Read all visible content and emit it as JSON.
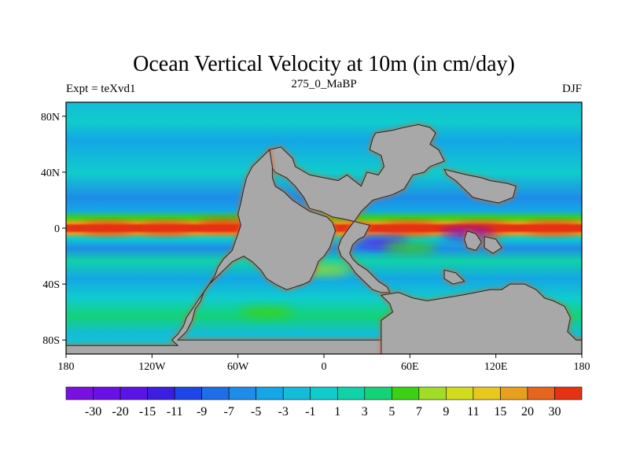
{
  "chart_data": {
    "type": "heatmap",
    "title": "Ocean Vertical Velocity at 10m (in cm/day)",
    "left_label": "Expt = teXvd1",
    "center_label": "275_0_MaBP",
    "right_label": "DJF",
    "x_range": [
      -180,
      180
    ],
    "y_range": [
      -90,
      90
    ],
    "x_ticks": [
      {
        "value": -180,
        "label": "180"
      },
      {
        "value": -120,
        "label": "120W"
      },
      {
        "value": -60,
        "label": "60W"
      },
      {
        "value": 0,
        "label": "0"
      },
      {
        "value": 60,
        "label": "60E"
      },
      {
        "value": 120,
        "label": "120E"
      },
      {
        "value": 180,
        "label": "180"
      }
    ],
    "y_ticks": [
      {
        "value": 80,
        "label": "80N"
      },
      {
        "value": 40,
        "label": "40N"
      },
      {
        "value": 0,
        "label": "0"
      },
      {
        "value": -40,
        "label": "40S"
      },
      {
        "value": -80,
        "label": "80S"
      }
    ],
    "colorbar": {
      "levels": [
        "-30",
        "-20",
        "-15",
        "-11",
        "-9",
        "-7",
        "-5",
        "-3",
        "-1",
        "1",
        "3",
        "5",
        "7",
        "9",
        "11",
        "15",
        "20",
        "30"
      ],
      "colors": [
        "#7a10e0",
        "#6a10e6",
        "#5a14e8",
        "#3b1ee0",
        "#1e46e6",
        "#1e6ee8",
        "#1e8ce8",
        "#14a6e6",
        "#14bcd8",
        "#10cccc",
        "#10d2a8",
        "#14d278",
        "#3cd214",
        "#a0dc28",
        "#d2dc1e",
        "#e6c81e",
        "#e6a01e",
        "#e6641e",
        "#e63214"
      ]
    },
    "land_color": "#a8a8a8",
    "land_polygons": [
      {
        "name": "pangea-main",
        "lonlat": [
          [
            -38,
            56
          ],
          [
            -30,
            58
          ],
          [
            -22,
            50
          ],
          [
            -20,
            44
          ],
          [
            -10,
            38
          ],
          [
            0,
            36
          ],
          [
            10,
            34
          ],
          [
            16,
            38
          ],
          [
            26,
            30
          ],
          [
            30,
            40
          ],
          [
            38,
            38
          ],
          [
            42,
            44
          ],
          [
            40,
            52
          ],
          [
            32,
            56
          ],
          [
            34,
            64
          ],
          [
            36,
            68
          ],
          [
            48,
            70
          ],
          [
            56,
            72
          ],
          [
            66,
            74
          ],
          [
            74,
            72
          ],
          [
            78,
            68
          ],
          [
            74,
            60
          ],
          [
            80,
            56
          ],
          [
            84,
            48
          ],
          [
            74,
            44
          ],
          [
            70,
            40
          ],
          [
            62,
            38
          ],
          [
            56,
            28
          ],
          [
            48,
            24
          ],
          [
            34,
            20
          ],
          [
            30,
            16
          ],
          [
            26,
            12
          ],
          [
            22,
            6
          ],
          [
            16,
            -2
          ],
          [
            12,
            -8
          ],
          [
            10,
            -14
          ],
          [
            12,
            -20
          ],
          [
            18,
            -26
          ],
          [
            22,
            -32
          ],
          [
            30,
            -40
          ],
          [
            34,
            -44
          ],
          [
            40,
            -46
          ],
          [
            46,
            -46
          ],
          [
            44,
            -42
          ],
          [
            38,
            -38
          ],
          [
            34,
            -34
          ],
          [
            30,
            -30
          ],
          [
            24,
            -26
          ],
          [
            20,
            -22
          ],
          [
            18,
            -18
          ],
          [
            20,
            -12
          ],
          [
            24,
            -8
          ],
          [
            28,
            -6
          ],
          [
            30,
            -2
          ],
          [
            32,
            2
          ],
          [
            16,
            6
          ],
          [
            6,
            8
          ],
          [
            -2,
            12
          ],
          [
            -10,
            14
          ],
          [
            -14,
            22
          ],
          [
            -20,
            30
          ],
          [
            -26,
            36
          ],
          [
            -34,
            40
          ],
          [
            -38,
            46
          ]
        ]
      },
      {
        "name": "south-america-africa",
        "lonlat": [
          [
            -38,
            56
          ],
          [
            -44,
            50
          ],
          [
            -50,
            44
          ],
          [
            -54,
            36
          ],
          [
            -56,
            28
          ],
          [
            -58,
            18
          ],
          [
            -60,
            10
          ],
          [
            -58,
            2
          ],
          [
            -60,
            -4
          ],
          [
            -62,
            -10
          ],
          [
            -64,
            -16
          ],
          [
            -70,
            -22
          ],
          [
            -74,
            -28
          ],
          [
            -76,
            -34
          ],
          [
            -80,
            -40
          ],
          [
            -84,
            -46
          ],
          [
            -86,
            -52
          ],
          [
            -90,
            -58
          ],
          [
            -92,
            -66
          ],
          [
            -96,
            -74
          ],
          [
            -102,
            -80
          ],
          [
            -60,
            -80
          ],
          [
            -20,
            -80
          ],
          [
            20,
            -80
          ],
          [
            60,
            -80
          ],
          [
            90,
            -80
          ],
          [
            120,
            -80
          ],
          [
            160,
            -80
          ],
          [
            180,
            -80
          ],
          [
            180,
            -90
          ],
          [
            -180,
            -90
          ],
          [
            -180,
            -84
          ],
          [
            -102,
            -84
          ],
          [
            -106,
            -80
          ],
          [
            -102,
            -76
          ],
          [
            -98,
            -70
          ],
          [
            -96,
            -64
          ],
          [
            -92,
            -58
          ],
          [
            -88,
            -52
          ],
          [
            -84,
            -46
          ],
          [
            -80,
            -40
          ],
          [
            -74,
            -34
          ],
          [
            -68,
            -28
          ],
          [
            -64,
            -24
          ],
          [
            -60,
            -22
          ],
          [
            -56,
            -20
          ],
          [
            -50,
            -24
          ],
          [
            -44,
            -30
          ],
          [
            -40,
            -36
          ],
          [
            -34,
            -40
          ],
          [
            -30,
            -42
          ],
          [
            -26,
            -44
          ],
          [
            -20,
            -42
          ],
          [
            -14,
            -40
          ],
          [
            -10,
            -38
          ],
          [
            -6,
            -30
          ],
          [
            -4,
            -24
          ],
          [
            0,
            -20
          ],
          [
            4,
            -14
          ],
          [
            6,
            -8
          ],
          [
            8,
            -2
          ],
          [
            6,
            4
          ],
          [
            2,
            8
          ],
          [
            -4,
            10
          ],
          [
            -10,
            12
          ],
          [
            -16,
            16
          ],
          [
            -22,
            20
          ],
          [
            -28,
            26
          ],
          [
            -34,
            30
          ],
          [
            -36,
            36
          ],
          [
            -36,
            44
          ]
        ]
      },
      {
        "name": "antarctic-rim",
        "lonlat": [
          [
            40,
            -48
          ],
          [
            52,
            -46
          ],
          [
            62,
            -50
          ],
          [
            72,
            -52
          ],
          [
            84,
            -50
          ],
          [
            96,
            -48
          ],
          [
            106,
            -46
          ],
          [
            116,
            -44
          ],
          [
            124,
            -44
          ],
          [
            130,
            -40
          ],
          [
            140,
            -40
          ],
          [
            148,
            -44
          ],
          [
            154,
            -50
          ],
          [
            160,
            -52
          ],
          [
            168,
            -56
          ],
          [
            172,
            -64
          ],
          [
            170,
            -74
          ],
          [
            176,
            -80
          ],
          [
            180,
            -80
          ],
          [
            180,
            -90
          ],
          [
            40,
            -90
          ],
          [
            40,
            -66
          ],
          [
            48,
            -60
          ],
          [
            46,
            -54
          ]
        ]
      },
      {
        "name": "east-island-1",
        "lonlat": [
          [
            84,
            42
          ],
          [
            92,
            40
          ],
          [
            100,
            38
          ],
          [
            110,
            36
          ],
          [
            116,
            34
          ],
          [
            128,
            32
          ],
          [
            134,
            30
          ],
          [
            132,
            22
          ],
          [
            122,
            18
          ],
          [
            112,
            20
          ],
          [
            104,
            22
          ],
          [
            98,
            28
          ],
          [
            92,
            34
          ],
          [
            86,
            38
          ]
        ]
      },
      {
        "name": "east-island-2",
        "lonlat": [
          [
            100,
            -2
          ],
          [
            106,
            -4
          ],
          [
            110,
            -10
          ],
          [
            106,
            -16
          ],
          [
            100,
            -14
          ],
          [
            98,
            -8
          ]
        ]
      },
      {
        "name": "east-island-3",
        "lonlat": [
          [
            112,
            -6
          ],
          [
            120,
            -8
          ],
          [
            124,
            -14
          ],
          [
            118,
            -18
          ],
          [
            112,
            -14
          ]
        ]
      },
      {
        "name": "east-island-4",
        "lonlat": [
          [
            84,
            -30
          ],
          [
            92,
            -32
          ],
          [
            98,
            -38
          ],
          [
            90,
            -40
          ],
          [
            84,
            -36
          ]
        ]
      }
    ],
    "hotspots": [
      {
        "lon": -150,
        "lat": 0,
        "value": 30
      },
      {
        "lon": -110,
        "lat": 0,
        "value": 30
      },
      {
        "lon": -70,
        "lat": 2,
        "value": 30
      },
      {
        "lon": 60,
        "lat": 0,
        "value": 30
      },
      {
        "lon": 110,
        "lat": 0,
        "value": 30
      },
      {
        "lon": 160,
        "lat": 0,
        "value": 30
      },
      {
        "lon": 40,
        "lat": -10,
        "value": -30
      },
      {
        "lon": 100,
        "lat": -4,
        "value": -30
      },
      {
        "lon": 60,
        "lat": -14,
        "value": 5
      },
      {
        "lon": 0,
        "lat": -30,
        "value": 7
      },
      {
        "lon": -40,
        "lat": -60,
        "value": 5
      }
    ]
  }
}
